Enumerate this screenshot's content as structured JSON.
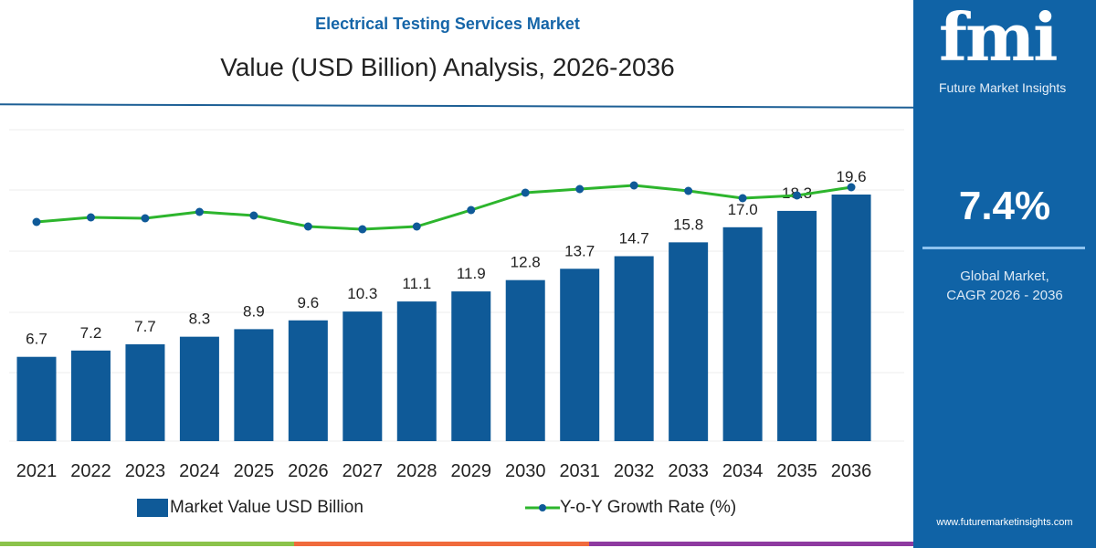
{
  "header": {
    "subtitle": "Electrical Testing Services Market",
    "title": "Value (USD Billion) Analysis, 2026-2036"
  },
  "panel": {
    "logo_text": "fmi",
    "logo_subtitle": "Future Market Insights",
    "cagr_value": "7.4%",
    "cagr_label_1": "Global Market,",
    "cagr_label_2": "CAGR 2026 - 2036",
    "url": "www.futuremarketinsights.com"
  },
  "colors": {
    "bar": "#0f5a98",
    "line": "#2db52d",
    "marker": "#0f5a98",
    "panel": "#1063a6",
    "stripe": [
      "#8bc34a",
      "#f06a3c",
      "#8e3aa0"
    ]
  },
  "chart_data": {
    "type": "bar+line",
    "categories": [
      "2021",
      "2022",
      "2023",
      "2024",
      "2025",
      "2026",
      "2027",
      "2028",
      "2029",
      "2030",
      "2031",
      "2032",
      "2033",
      "2034",
      "2035",
      "2036"
    ],
    "series": [
      {
        "name": "Market Value USD Billion",
        "type": "bar",
        "values": [
          6.7,
          7.2,
          7.7,
          8.3,
          8.9,
          9.6,
          10.3,
          11.1,
          11.9,
          12.8,
          13.7,
          14.7,
          15.8,
          17.0,
          18.3,
          19.6
        ],
        "data_labels": [
          "6.7",
          "7.2",
          "7.7",
          "8.3",
          "8.9",
          "9.6",
          "10.3",
          "11.1",
          "11.9",
          "12.8",
          "13.7",
          "14.7",
          "15.8",
          "17.0",
          "18.3",
          "19.6"
        ]
      },
      {
        "name": "Y-o-Y Growth Rate (%)",
        "type": "line",
        "values": [
          6.85,
          7.1,
          7.05,
          7.4,
          7.2,
          6.6,
          6.45,
          6.6,
          7.5,
          8.45,
          8.65,
          8.85,
          8.55,
          8.15,
          8.3,
          8.75
        ]
      }
    ],
    "ylim": [
      0,
      19.6
    ],
    "y2lim": [
      4,
      10
    ],
    "grid": true,
    "legend": "bottom"
  }
}
